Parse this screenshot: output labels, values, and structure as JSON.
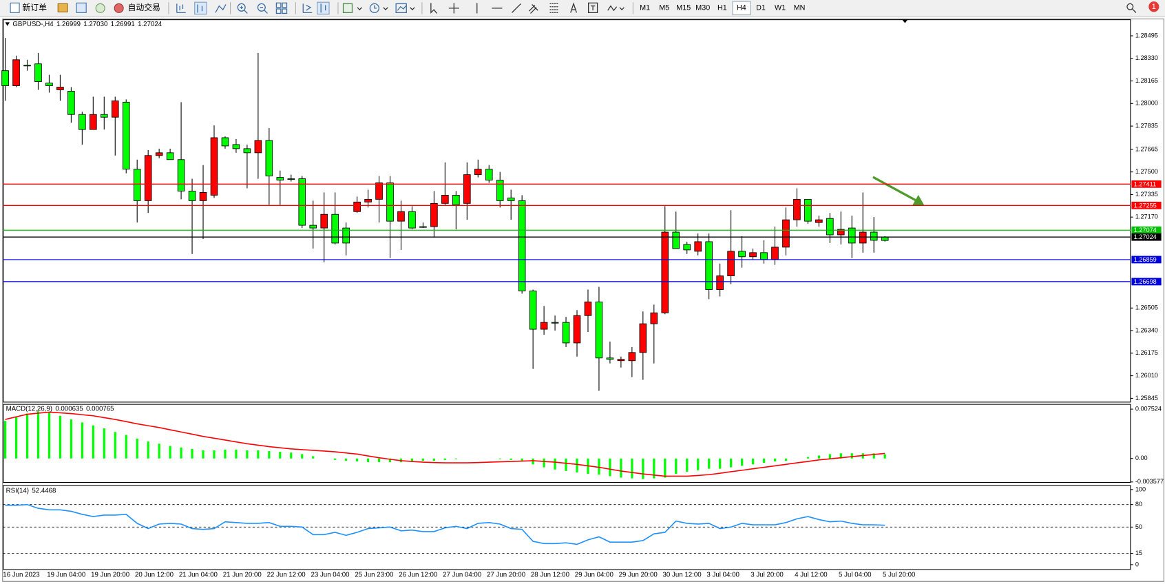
{
  "toolbar": {
    "new_order": "新订单",
    "auto_trading": "自动交易",
    "timeframes": [
      "M1",
      "M5",
      "M15",
      "M30",
      "H1",
      "H4",
      "D1",
      "W1",
      "MN"
    ],
    "notifications": 1
  },
  "chart_data": [
    {
      "type": "candlestick",
      "symbol": "GBPUSD-,H4",
      "ohlc_labels": [
        "1.26999",
        "1.27030",
        "1.26991",
        "1.27024"
      ],
      "categories": [
        "16 Jun 2023",
        null,
        null,
        null,
        "19 Jun 04:00",
        null,
        null,
        null,
        "19 Jun 20:00",
        null,
        null,
        null,
        "20 Jun 12:00",
        null,
        null,
        null,
        "21 Jun 04:00",
        null,
        null,
        null,
        "21 Jun 20:00",
        null,
        null,
        null,
        "22 Jun 12:00",
        null,
        null,
        null,
        "23 Jun 04:00",
        null,
        null,
        null,
        "25 Jun 23:00",
        null,
        null,
        null,
        "26 Jun 12:00",
        null,
        null,
        null,
        "27 Jun 04:00",
        null,
        null,
        null,
        "27 Jun 20:00",
        null,
        null,
        null,
        "28 Jun 12:00",
        null,
        null,
        null,
        "29 Jun 04:00",
        null,
        null,
        null,
        "29 Jun 20:00",
        null,
        null,
        null,
        "30 Jun 12:00",
        null,
        null,
        null,
        "3 Jul 04:00",
        null,
        null,
        null,
        "3 Jul 20:00",
        null,
        null,
        null,
        "4 Jul 12:00",
        null,
        null,
        null,
        "5 Jul 04:00",
        null,
        null,
        null,
        "5 Jul 20:00"
      ],
      "open": [
        1.2813,
        1.2832,
        1.2828,
        1.2816,
        1.2813,
        1.2812,
        1.2792,
        1.2781,
        1.2792,
        1.279,
        1.2802,
        1.2752,
        1.2729,
        1.2762,
        1.2764,
        1.2759,
        1.2736,
        1.2729,
        1.2735,
        1.2775,
        1.2769,
        1.2767,
        1.2764,
        1.2773,
        1.2747,
        1.2744,
        1.2745,
        1.2711,
        1.2709,
        1.2719,
        1.2698,
        1.2698,
        1.2728,
        1.273,
        1.2742,
        1.2714,
        1.2721,
        1.2709,
        1.271,
        1.2727,
        1.2733,
        1.2726,
        1.2748,
        1.2752,
        1.2744,
        1.2729,
        1.2729,
        1.2663,
        1.2635,
        1.264,
        1.264,
        1.2625,
        1.2645,
        1.2655,
        1.2614,
        1.2613,
        1.2613,
        1.2618,
        1.2639,
        1.2647,
        1.2706,
        1.2694,
        1.2693,
        1.2699,
        1.2664,
        1.2674,
        1.2692,
        1.2688,
        1.2691,
        1.2686,
        1.2695,
        1.2715,
        1.273,
        1.2714,
        1.2715,
        1.2704,
        1.2708,
        1.2698,
        1.2706,
        1.27,
        1.26999
      ],
      "high": [
        1.2848,
        1.2835,
        1.2832,
        1.2837,
        1.2821,
        1.2821,
        1.2812,
        1.2794,
        1.2805,
        1.2805,
        1.2805,
        1.2803,
        1.2759,
        1.2766,
        1.2767,
        1.2767,
        1.2801,
        1.2745,
        1.2755,
        1.2784,
        1.2776,
        1.2774,
        1.277,
        1.2837,
        1.2782,
        1.2751,
        1.2748,
        1.2747,
        1.2729,
        1.2735,
        1.2735,
        1.2713,
        1.2732,
        1.2737,
        1.2747,
        1.2747,
        1.2729,
        1.2725,
        1.2713,
        1.2736,
        1.2757,
        1.2736,
        1.2757,
        1.2759,
        1.2755,
        1.275,
        1.2737,
        1.2733,
        1.2664,
        1.2652,
        1.2645,
        1.2644,
        1.2649,
        1.2664,
        1.2666,
        1.2626,
        1.2615,
        1.2622,
        1.2648,
        1.2653,
        1.2725,
        1.2721,
        1.2699,
        1.2705,
        1.2705,
        1.2683,
        1.2722,
        1.2703,
        1.2694,
        1.27,
        1.271,
        1.2724,
        1.2738,
        1.273,
        1.2718,
        1.272,
        1.2721,
        1.2718,
        1.2735,
        1.2717,
        1.2703
      ],
      "low": [
        1.2802,
        1.2812,
        1.2824,
        1.281,
        1.2808,
        1.2802,
        1.2786,
        1.277,
        1.2781,
        1.2781,
        1.2762,
        1.2749,
        1.2713,
        1.272,
        1.276,
        1.2759,
        1.273,
        1.269,
        1.2701,
        1.2731,
        1.2767,
        1.2764,
        1.2738,
        1.2745,
        1.2726,
        1.2726,
        1.2743,
        1.2709,
        1.2694,
        1.2684,
        1.2697,
        1.2689,
        1.272,
        1.2724,
        1.2713,
        1.2687,
        1.2693,
        1.2708,
        1.2709,
        1.2702,
        1.2726,
        1.2708,
        1.2715,
        1.2746,
        1.2742,
        1.2724,
        1.2715,
        1.2661,
        1.2606,
        1.2631,
        1.2634,
        1.2622,
        1.2615,
        1.2633,
        1.259,
        1.261,
        1.2607,
        1.26,
        1.2598,
        1.261,
        1.2646,
        1.2694,
        1.269,
        1.2689,
        1.2657,
        1.2659,
        1.2668,
        1.268,
        1.2686,
        1.2683,
        1.2682,
        1.2689,
        1.271,
        1.2712,
        1.271,
        1.2698,
        1.2697,
        1.2687,
        1.2691,
        1.2691,
        1.26991
      ],
      "close": [
        1.2824,
        1.2813,
        1.2828,
        1.2829,
        1.2815,
        1.281,
        1.2809,
        1.2792,
        1.2781,
        1.2792,
        1.279,
        1.2801,
        1.2752,
        1.2729,
        1.2762,
        1.2764,
        1.2759,
        1.2736,
        1.2729,
        1.2733,
        1.2775,
        1.277,
        1.2767,
        1.2764,
        1.2773,
        1.2746,
        1.2745,
        1.2745,
        1.2711,
        1.2709,
        1.2719,
        1.2709,
        1.2721,
        1.2728,
        1.273,
        1.2742,
        1.2714,
        1.2721,
        1.271,
        1.271,
        1.2727,
        1.2733,
        1.2727,
        1.2748,
        1.2752,
        1.2744,
        1.2731,
        1.2729,
        1.2663,
        1.2635,
        1.264,
        1.264,
        1.2625,
        1.2645,
        1.2655,
        1.2614,
        1.2612,
        1.2612,
        1.2618,
        1.2639,
        1.2647,
        1.2706,
        1.2697,
        1.2692,
        1.2699,
        1.2664,
        1.2674,
        1.2692,
        1.2688,
        1.2691,
        1.2686,
        1.2695,
        1.2715,
        1.273,
        1.2713,
        1.2716,
        1.2704,
        1.2709,
        1.2698,
        1.2706,
        1.27024
      ],
      "up_color": "#00ff00",
      "down_color": "#ff0000",
      "ylim": [
        1.2582,
        1.2861
      ],
      "yticks": [
        1.28495,
        {
          "value": 1.2833,
          "label": "1.28330"
        },
        1.28165,
        {
          "value": 1.28,
          "label": "1.28000"
        },
        1.27835,
        1.27665,
        {
          "value": 1.275,
          "label": "1.27500"
        },
        1.27335,
        {
          "value": 1.2717,
          "label": "1.27170"
        },
        1.26505,
        {
          "value": 1.2634,
          "label": "1.26340"
        },
        1.26175,
        {
          "value": 1.2601,
          "label": "1.26010"
        },
        1.25845
      ],
      "hlines": [
        {
          "value": 1.27411,
          "color": "#ff0000"
        },
        {
          "value": 1.27255,
          "color": "#ff0000"
        },
        {
          "value": 1.27074,
          "color": "#00c000"
        },
        {
          "value": 1.27024,
          "color": "#000000"
        },
        {
          "value": 1.26859,
          "color": "#0000dd"
        },
        {
          "value": 1.26698,
          "color": "#0000dd"
        }
      ]
    },
    {
      "type": "macd",
      "title": "MACD(12,26,9)",
      "series": [
        {
          "color": "#00ff00",
          "values": [
            0.00573,
            0.00629,
            0.00685,
            0.00719,
            0.00707,
            0.00651,
            0.00595,
            0.0055,
            0.00505,
            0.0046,
            0.00404,
            0.00359,
            0.00303,
            0.00258,
            0.00225,
            0.00191,
            0.00168,
            0.00146,
            0.00124,
            0.00124,
            0.00135,
            0.00135,
            0.00124,
            0.00124,
            0.00112,
            0.00101,
            0.0009,
            0.00067,
            0.00034,
            0,
            -0.00022,
            -0.00034,
            -0.00045,
            -0.00056,
            -0.00056,
            -0.00056,
            -0.00056,
            -0.00045,
            -0.00034,
            -0.00034,
            -0.00022,
            -0.00011,
            0,
            0,
            0,
            -0.00011,
            -0.00022,
            -0.00045,
            -0.0009,
            -0.00135,
            -0.00168,
            -0.00191,
            -0.00213,
            -0.00236,
            -0.00247,
            -0.0027,
            -0.00292,
            -0.00303,
            -0.00314,
            -0.00303,
            -0.00292,
            -0.00236,
            -0.00202,
            -0.0018,
            -0.00157,
            -0.00157,
            -0.00135,
            -0.00112,
            -0.0009,
            -0.00067,
            -0.00045,
            -0.00034,
            0,
            0.00022,
            0.00045,
            0.00067,
            0.00079,
            0.00079,
            0.00079,
            0.00079,
            0.000635
          ]
        },
        {
          "color": "#ff0000",
          "values": [
            0.00595,
            0.00635,
            0.00674,
            0.00691,
            0.00707,
            0.00696,
            0.00685,
            0.00668,
            0.00651,
            0.00623,
            0.00595,
            0.00562,
            0.00528,
            0.005,
            0.00472,
            0.00438,
            0.00404,
            0.00371,
            0.00337,
            0.00309,
            0.00281,
            0.00253,
            0.00225,
            0.00203,
            0.0018,
            0.00163,
            0.00146,
            0.00135,
            0.00124,
            0.00113,
            0.00101,
            0.00084,
            0.00067,
            0.00039,
            0.00011,
            -0.00012,
            -0.00034,
            -0.00045,
            -0.00056,
            -0.00062,
            -0.00067,
            -0.00067,
            -0.00067,
            -0.00062,
            -0.00056,
            -0.00051,
            -0.00045,
            -0.0004,
            -0.00034,
            -0.00045,
            -0.00056,
            -0.00073,
            -0.0009,
            -0.00113,
            -0.00135,
            -0.00163,
            -0.00191,
            -0.00214,
            -0.00236,
            -0.00253,
            -0.0027,
            -0.0027,
            -0.0027,
            -0.00259,
            -0.00247,
            -0.00225,
            -0.00202,
            -0.0018,
            -0.00157,
            -0.00135,
            -0.00112,
            -0.0009,
            -0.00067,
            -0.00045,
            -0.00022,
            -6e-05,
            0.00011,
            0.00028,
            0.00045,
            0.00061,
            0.000765
          ]
        }
      ],
      "ylim": [
        -0.0036,
        0.0082
      ],
      "yticks": [
        0.007524,
        {
          "value": 0,
          "label": "0.00"
        },
        -0.003577
      ]
    },
    {
      "type": "line",
      "title": "RSI(14)",
      "series": [
        {
          "color": "#1e90ff",
          "values": [
            79,
            79,
            80,
            75,
            73,
            73,
            71,
            67,
            64,
            66,
            66,
            67,
            55,
            48,
            54,
            55,
            54,
            48,
            47,
            48,
            57,
            56,
            55,
            55,
            56,
            51,
            51,
            50,
            40,
            40,
            43,
            39,
            43,
            48,
            49,
            50,
            45,
            46,
            44,
            44,
            49,
            51,
            48,
            55,
            56,
            54,
            48,
            47,
            31,
            28,
            28,
            29,
            27,
            33,
            37,
            30,
            30,
            30,
            32,
            41,
            43,
            58,
            55,
            54,
            55,
            48,
            50,
            55,
            53,
            53,
            53,
            56,
            61,
            64,
            60,
            57,
            58,
            55,
            53,
            53,
            52.4468
          ]
        }
      ],
      "ylim": [
        -6,
        105
      ],
      "yticks": [
        100,
        80,
        50,
        15,
        0
      ],
      "levels": [
        80,
        50,
        15
      ]
    }
  ]
}
